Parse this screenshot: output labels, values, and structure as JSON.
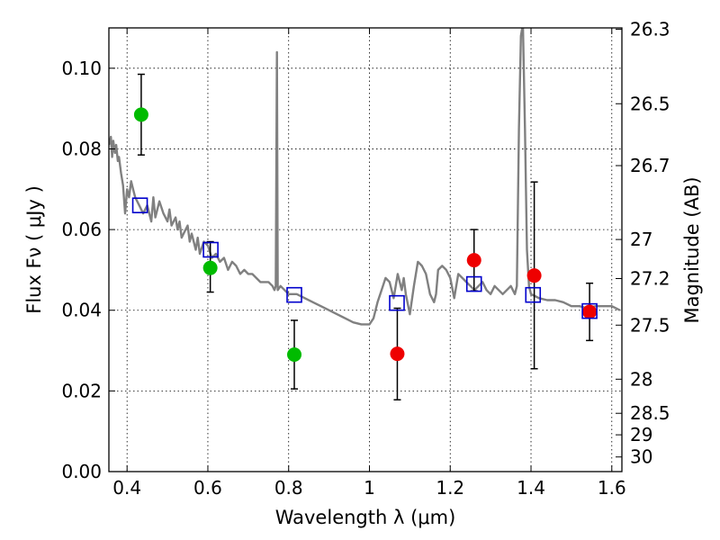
{
  "chart_data": {
    "type": "scatter",
    "title": "",
    "xlabel": "Wavelength  λ (μm)",
    "ylabel": "Flux  Fν  ( μJy )",
    "ylabel_right": "Magnitude (AB)",
    "xlim": [
      0.355,
      1.625
    ],
    "ylim": [
      0.0,
      0.11
    ],
    "grid": true,
    "x_ticks": [
      {
        "value": 0.4,
        "label": "0.4"
      },
      {
        "value": 0.6,
        "label": "0.6"
      },
      {
        "value": 0.8,
        "label": "0.8"
      },
      {
        "value": 1.0,
        "label": "1"
      },
      {
        "value": 1.2,
        "label": "1.2"
      },
      {
        "value": 1.4,
        "label": "1.4"
      },
      {
        "value": 1.6,
        "label": "1.6"
      }
    ],
    "y_ticks": [
      {
        "value": 0.0,
        "label": "0.00"
      },
      {
        "value": 0.02,
        "label": "0.02"
      },
      {
        "value": 0.04,
        "label": "0.04"
      },
      {
        "value": 0.06,
        "label": "0.06"
      },
      {
        "value": 0.08,
        "label": "0.08"
      },
      {
        "value": 0.1,
        "label": "0.10"
      }
    ],
    "mag_ticks": [
      {
        "value": 26.3,
        "label": "26.3"
      },
      {
        "value": 26.5,
        "label": "26.5"
      },
      {
        "value": 26.7,
        "label": "26.7"
      },
      {
        "value": 27.0,
        "label": "27"
      },
      {
        "value": 27.2,
        "label": "27.2"
      },
      {
        "value": 27.5,
        "label": "27.5"
      },
      {
        "value": 28.0,
        "label": "28"
      },
      {
        "value": 28.5,
        "label": "28.5"
      },
      {
        "value": 29.0,
        "label": "29"
      },
      {
        "value": 30.0,
        "label": "30"
      }
    ],
    "model_spectrum": {
      "color": "#808080",
      "points": [
        [
          0.355,
          0.081
        ],
        [
          0.36,
          0.083
        ],
        [
          0.363,
          0.078
        ],
        [
          0.366,
          0.082
        ],
        [
          0.37,
          0.079
        ],
        [
          0.373,
          0.081
        ],
        [
          0.377,
          0.077
        ],
        [
          0.38,
          0.078
        ],
        [
          0.385,
          0.074
        ],
        [
          0.39,
          0.071
        ],
        [
          0.395,
          0.064
        ],
        [
          0.4,
          0.07
        ],
        [
          0.405,
          0.068
        ],
        [
          0.41,
          0.072
        ],
        [
          0.415,
          0.07
        ],
        [
          0.42,
          0.068
        ],
        [
          0.43,
          0.066
        ],
        [
          0.44,
          0.064
        ],
        [
          0.45,
          0.066
        ],
        [
          0.46,
          0.062
        ],
        [
          0.465,
          0.068
        ],
        [
          0.47,
          0.063
        ],
        [
          0.48,
          0.067
        ],
        [
          0.49,
          0.064
        ],
        [
          0.5,
          0.062
        ],
        [
          0.505,
          0.065
        ],
        [
          0.51,
          0.061
        ],
        [
          0.52,
          0.063
        ],
        [
          0.525,
          0.06
        ],
        [
          0.53,
          0.062
        ],
        [
          0.535,
          0.058
        ],
        [
          0.54,
          0.059
        ],
        [
          0.55,
          0.061
        ],
        [
          0.555,
          0.057
        ],
        [
          0.56,
          0.059
        ],
        [
          0.57,
          0.055
        ],
        [
          0.575,
          0.058
        ],
        [
          0.58,
          0.054
        ],
        [
          0.59,
          0.057
        ],
        [
          0.6,
          0.056
        ],
        [
          0.61,
          0.053
        ],
        [
          0.62,
          0.054
        ],
        [
          0.63,
          0.052
        ],
        [
          0.64,
          0.053
        ],
        [
          0.65,
          0.05
        ],
        [
          0.66,
          0.052
        ],
        [
          0.67,
          0.051
        ],
        [
          0.68,
          0.049
        ],
        [
          0.69,
          0.05
        ],
        [
          0.7,
          0.049
        ],
        [
          0.71,
          0.049
        ],
        [
          0.72,
          0.048
        ],
        [
          0.73,
          0.047
        ],
        [
          0.74,
          0.047
        ],
        [
          0.75,
          0.047
        ],
        [
          0.76,
          0.046
        ],
        [
          0.765,
          0.045
        ],
        [
          0.768,
          0.046
        ],
        [
          0.771,
          0.104
        ],
        [
          0.773,
          0.045
        ],
        [
          0.78,
          0.046
        ],
        [
          0.79,
          0.045
        ],
        [
          0.8,
          0.044
        ],
        [
          0.82,
          0.044
        ],
        [
          0.84,
          0.043
        ],
        [
          0.86,
          0.042
        ],
        [
          0.88,
          0.041
        ],
        [
          0.9,
          0.04
        ],
        [
          0.92,
          0.039
        ],
        [
          0.94,
          0.038
        ],
        [
          0.96,
          0.037
        ],
        [
          0.98,
          0.0365
        ],
        [
          1.0,
          0.0365
        ],
        [
          1.01,
          0.038
        ],
        [
          1.02,
          0.042
        ],
        [
          1.03,
          0.045
        ],
        [
          1.04,
          0.048
        ],
        [
          1.05,
          0.047
        ],
        [
          1.06,
          0.043
        ],
        [
          1.07,
          0.049
        ],
        [
          1.08,
          0.045
        ],
        [
          1.085,
          0.048
        ],
        [
          1.09,
          0.044
        ],
        [
          1.1,
          0.039
        ],
        [
          1.11,
          0.046
        ],
        [
          1.12,
          0.052
        ],
        [
          1.13,
          0.051
        ],
        [
          1.14,
          0.049
        ],
        [
          1.15,
          0.044
        ],
        [
          1.16,
          0.042
        ],
        [
          1.165,
          0.044
        ],
        [
          1.17,
          0.05
        ],
        [
          1.18,
          0.051
        ],
        [
          1.19,
          0.05
        ],
        [
          1.2,
          0.048
        ],
        [
          1.21,
          0.043
        ],
        [
          1.22,
          0.049
        ],
        [
          1.23,
          0.048
        ],
        [
          1.24,
          0.047
        ],
        [
          1.25,
          0.046
        ],
        [
          1.26,
          0.045
        ],
        [
          1.27,
          0.046
        ],
        [
          1.28,
          0.047
        ],
        [
          1.29,
          0.045
        ],
        [
          1.3,
          0.044
        ],
        [
          1.31,
          0.046
        ],
        [
          1.32,
          0.045
        ],
        [
          1.33,
          0.044
        ],
        [
          1.34,
          0.045
        ],
        [
          1.35,
          0.046
        ],
        [
          1.36,
          0.044
        ],
        [
          1.365,
          0.046
        ],
        [
          1.37,
          0.085
        ],
        [
          1.375,
          0.108
        ],
        [
          1.38,
          0.111
        ],
        [
          1.385,
          0.085
        ],
        [
          1.39,
          0.055
        ],
        [
          1.395,
          0.046
        ],
        [
          1.4,
          0.044
        ],
        [
          1.41,
          0.0435
        ],
        [
          1.42,
          0.043
        ],
        [
          1.44,
          0.0425
        ],
        [
          1.46,
          0.0425
        ],
        [
          1.48,
          0.042
        ],
        [
          1.5,
          0.041
        ],
        [
          1.52,
          0.041
        ],
        [
          1.54,
          0.0405
        ],
        [
          1.56,
          0.041
        ],
        [
          1.58,
          0.041
        ],
        [
          1.6,
          0.041
        ],
        [
          1.62,
          0.04
        ]
      ]
    },
    "model_photometry": {
      "color": "#0000cc",
      "points": [
        {
          "x": 0.432,
          "y": 0.066
        },
        {
          "x": 0.607,
          "y": 0.055
        },
        {
          "x": 0.814,
          "y": 0.0438
        },
        {
          "x": 1.068,
          "y": 0.0418
        },
        {
          "x": 1.259,
          "y": 0.0465
        },
        {
          "x": 1.405,
          "y": 0.0438
        },
        {
          "x": 1.545,
          "y": 0.0398
        }
      ]
    },
    "observed": [
      {
        "x": 0.435,
        "y": 0.0885,
        "err_lo": 0.0785,
        "err_hi": 0.0985,
        "color": "#00bb00"
      },
      {
        "x": 0.606,
        "y": 0.0505,
        "err_lo": 0.0445,
        "err_hi": 0.057,
        "color": "#00bb00"
      },
      {
        "x": 0.814,
        "y": 0.029,
        "err_lo": 0.0205,
        "err_hi": 0.0375,
        "color": "#00bb00"
      },
      {
        "x": 1.069,
        "y": 0.0292,
        "err_lo": 0.0178,
        "err_hi": 0.0405,
        "color": "#ee0000"
      },
      {
        "x": 1.259,
        "y": 0.0524,
        "err_lo": 0.0448,
        "err_hi": 0.06,
        "color": "#ee0000"
      },
      {
        "x": 1.408,
        "y": 0.0486,
        "err_lo": 0.0255,
        "err_hi": 0.0718,
        "color": "#ee0000"
      },
      {
        "x": 1.545,
        "y": 0.0396,
        "err_lo": 0.0325,
        "err_hi": 0.0467,
        "color": "#ee0000"
      }
    ]
  }
}
